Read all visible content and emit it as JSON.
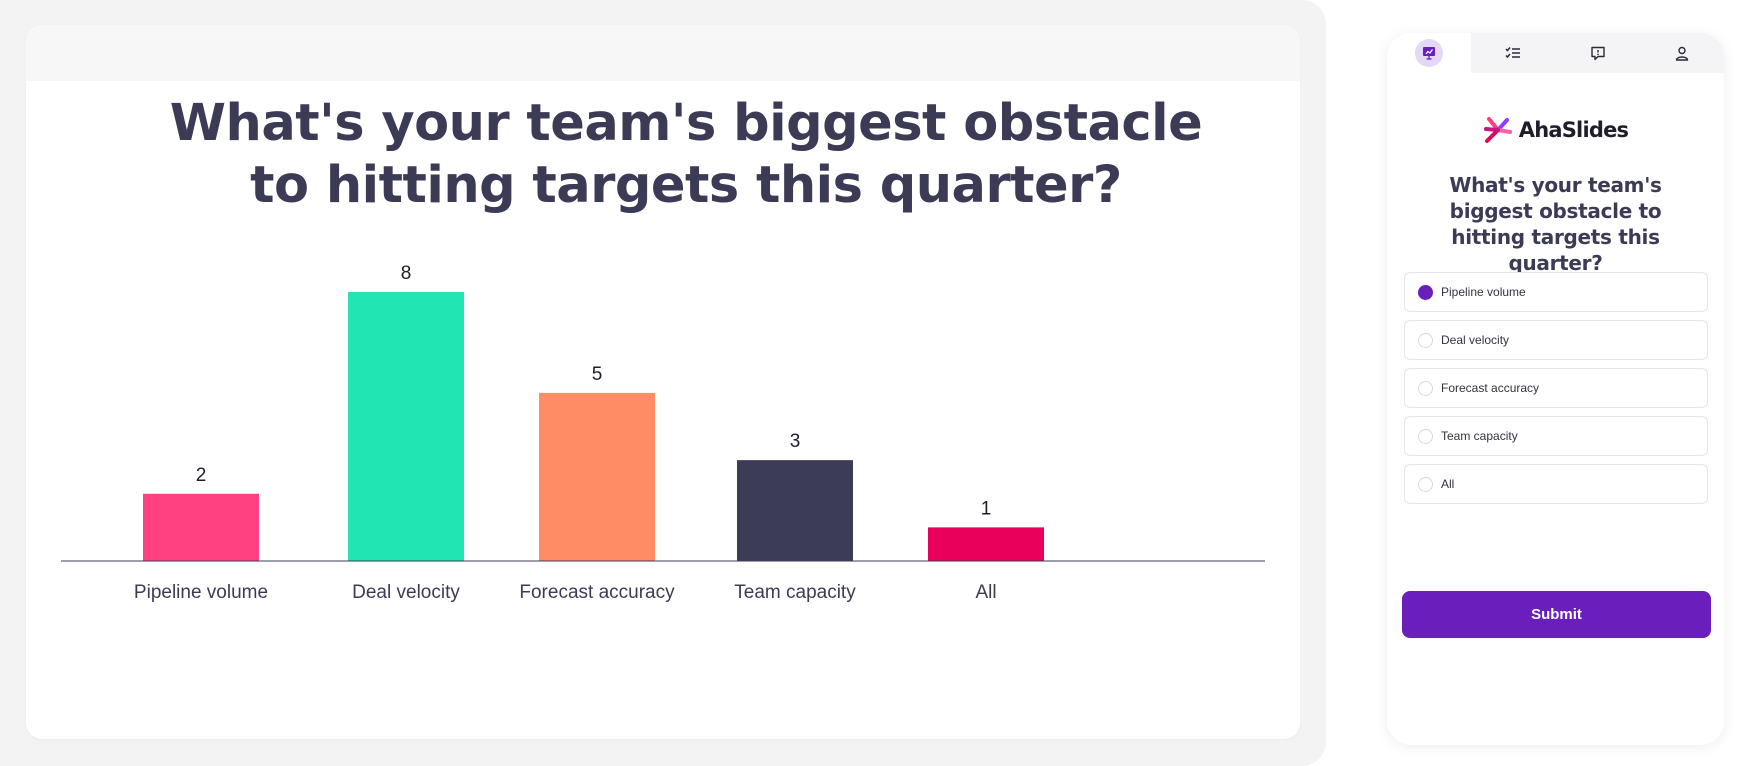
{
  "slide": {
    "title": "What's your team's biggest obstacle to hitting targets this quarter?"
  },
  "chart_data": {
    "type": "bar",
    "categories": [
      "Pipeline volume",
      "Deal velocity",
      "Forecast accuracy",
      "Team capacity",
      "All"
    ],
    "values": [
      2,
      8,
      5,
      3,
      1
    ],
    "colors": [
      "#ff4081",
      "#21e6b4",
      "#ff8c64",
      "#3d3c57",
      "#e8005a"
    ],
    "title": "What's your team's biggest obstacle to hitting targets this quarter?",
    "xlabel": "",
    "ylabel": "",
    "ylim": [
      0,
      8
    ],
    "grid": false,
    "legend": "none"
  },
  "phone": {
    "tabs": [
      {
        "name": "presentation-icon",
        "active": true
      },
      {
        "name": "checklist-icon",
        "active": false
      },
      {
        "name": "chat-icon",
        "active": false
      },
      {
        "name": "user-icon",
        "active": false
      }
    ],
    "brand": "AhaSlides",
    "question": "What's your team's biggest obstacle to hitting targets this quarter?",
    "options": [
      {
        "label": "Pipeline volume",
        "selected": true
      },
      {
        "label": "Deal velocity",
        "selected": false
      },
      {
        "label": "Forecast accuracy",
        "selected": false
      },
      {
        "label": "Team capacity",
        "selected": false
      },
      {
        "label": "All",
        "selected": false
      }
    ],
    "submit_label": "Submit",
    "accent_color": "#6a1fbd"
  }
}
